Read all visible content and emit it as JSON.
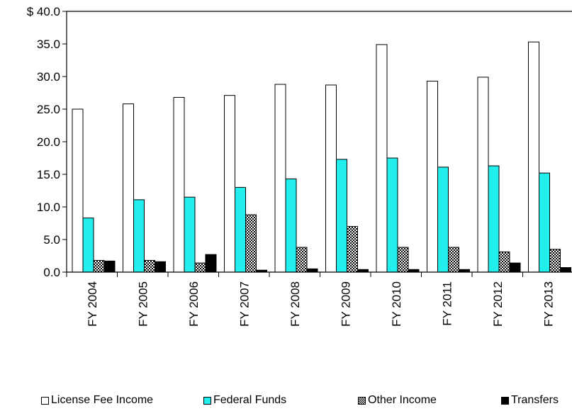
{
  "chart_data": {
    "type": "bar",
    "title": "",
    "xlabel": "",
    "ylabel": "",
    "ylim": [
      0,
      40
    ],
    "y_tick_step": 5,
    "y_tick_labels": [
      "0.0",
      "5.0",
      "10.0",
      "15.0",
      "20.0",
      "25.0",
      "30.0",
      "35.0",
      "$ 40.0"
    ],
    "grid": false,
    "legend_position": "bottom",
    "categories": [
      "FY 2004",
      "FY 2005",
      "FY 2006",
      "FY 2007",
      "FY 2008",
      "FY 2009",
      "FY 2010",
      "FY 2011",
      "FY 2012",
      "FY 2013"
    ],
    "series": [
      {
        "name": "License Fee Income",
        "fill": "#ffffff",
        "pattern": "none",
        "values": [
          25.0,
          25.8,
          26.8,
          27.1,
          28.8,
          28.7,
          34.9,
          29.3,
          29.9,
          35.3
        ]
      },
      {
        "name": "Federal Funds",
        "fill": "#22eeee",
        "pattern": "none",
        "values": [
          8.3,
          11.1,
          11.5,
          13.0,
          14.3,
          17.3,
          17.5,
          16.1,
          16.3,
          15.2
        ]
      },
      {
        "name": "Other Income",
        "fill": "#ffffff",
        "pattern": "checker",
        "values": [
          1.8,
          1.8,
          1.4,
          8.8,
          3.8,
          7.0,
          3.8,
          3.8,
          3.1,
          3.5
        ]
      },
      {
        "name": "Transfers",
        "fill": "#000000",
        "pattern": "none",
        "values": [
          1.7,
          1.6,
          2.7,
          0.3,
          0.5,
          0.4,
          0.4,
          0.4,
          1.4,
          0.7
        ]
      }
    ]
  }
}
